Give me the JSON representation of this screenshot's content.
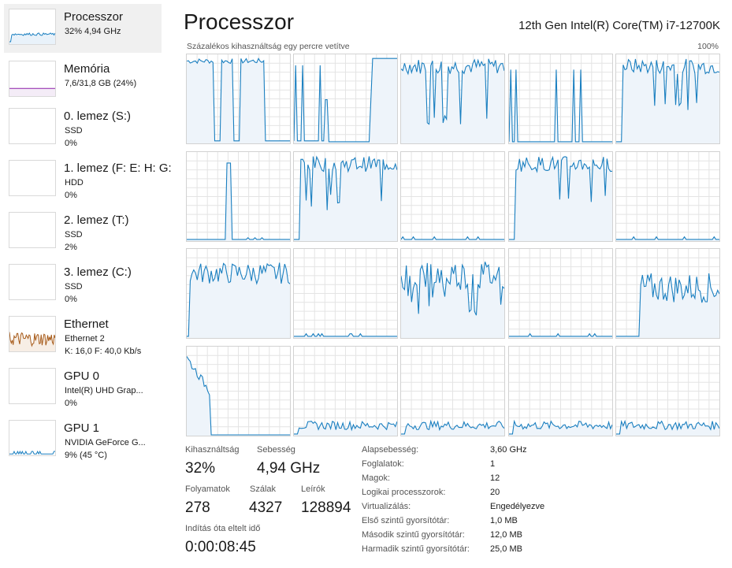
{
  "sidebar": {
    "items": [
      {
        "name": "Processzor",
        "sub1": "32% 4,94 GHz",
        "sub2": "",
        "sub3": "",
        "graph_color": "#1a7fc0",
        "kind": "cpu-graph"
      },
      {
        "name": "Memória",
        "sub1": "7,6/31,8 GB (24%)",
        "sub2": "",
        "sub3": "",
        "graph_color": "#8b1fa8",
        "kind": "memory-graph"
      },
      {
        "name": "0. lemez (S:)",
        "sub1": "SSD",
        "sub2": "0%",
        "sub3": "",
        "graph_color": "#4d9c2e",
        "kind": "disk-graph"
      },
      {
        "name": "1. lemez (F: E: H: G:",
        "sub1": "HDD",
        "sub2": "0%",
        "sub3": "",
        "graph_color": "#4d9c2e",
        "kind": "disk-graph"
      },
      {
        "name": "2. lemez (T:)",
        "sub1": "SSD",
        "sub2": "2%",
        "sub3": "",
        "graph_color": "#4d9c2e",
        "kind": "disk-graph"
      },
      {
        "name": "3. lemez (C:)",
        "sub1": "SSD",
        "sub2": "0%",
        "sub3": "",
        "graph_color": "#4d9c2e",
        "kind": "disk-graph"
      },
      {
        "name": "Ethernet",
        "sub1": "Ethernet 2",
        "sub2": "K: 16,0  F: 40,0 Kb/s",
        "sub3": "",
        "graph_color": "#a75b1a",
        "kind": "network-graph"
      },
      {
        "name": "GPU 0",
        "sub1": "Intel(R) UHD Grap...",
        "sub2": "0%",
        "sub3": "",
        "graph_color": "#1a7fc0",
        "kind": "gpu-graph"
      },
      {
        "name": "GPU 1",
        "sub1": "NVIDIA GeForce G...",
        "sub2": "9%  (45 °C)",
        "sub3": "",
        "graph_color": "#1a7fc0",
        "kind": "gpu-graph"
      }
    ]
  },
  "header": {
    "title": "Processzor",
    "cpu_model": "12th Gen Intel(R) Core(TM) i7-12700K",
    "graph_caption": "Százalékos kihasználtság egy percre vetítve",
    "graph_max": "100%"
  },
  "graph": {
    "line_color": "#1a7fc0",
    "fill_color": "#eef4fa",
    "grid_color": "#e4e4e4",
    "logical_processor_count": 20
  },
  "stats": {
    "utilization": {
      "label": "Kihasználtság",
      "value": "32%"
    },
    "speed": {
      "label": "Sebesség",
      "value": "4,94 GHz"
    },
    "processes": {
      "label": "Folyamatok",
      "value": "278"
    },
    "threads": {
      "label": "Szálak",
      "value": "4327"
    },
    "handles": {
      "label": "Leírók",
      "value": "128894"
    },
    "uptime": {
      "label": "Indítás óta eltelt idő",
      "value": "0:00:08:45"
    }
  },
  "specs": [
    {
      "label": "Alapsebesség:",
      "value": "3,60 GHz",
      "bold": false
    },
    {
      "label": "Foglalatok:",
      "value": "1",
      "bold": false
    },
    {
      "label": "Magok:",
      "value": "12",
      "bold": false
    },
    {
      "label": "Logikai processzorok:",
      "value": "20",
      "bold": false
    },
    {
      "label": "Virtualizálás:",
      "value": "Engedélyezve",
      "bold": false
    },
    {
      "label": "Első szintű gyorsítótár:",
      "value": "1,0 MB",
      "bold": false
    },
    {
      "label": "Második szintű gyorsítótár:",
      "value": "12,0 MB",
      "bold": false
    },
    {
      "label": "Harmadik szintű gyorsítótár:",
      "value": "25,0 MB",
      "bold": false
    }
  ]
}
